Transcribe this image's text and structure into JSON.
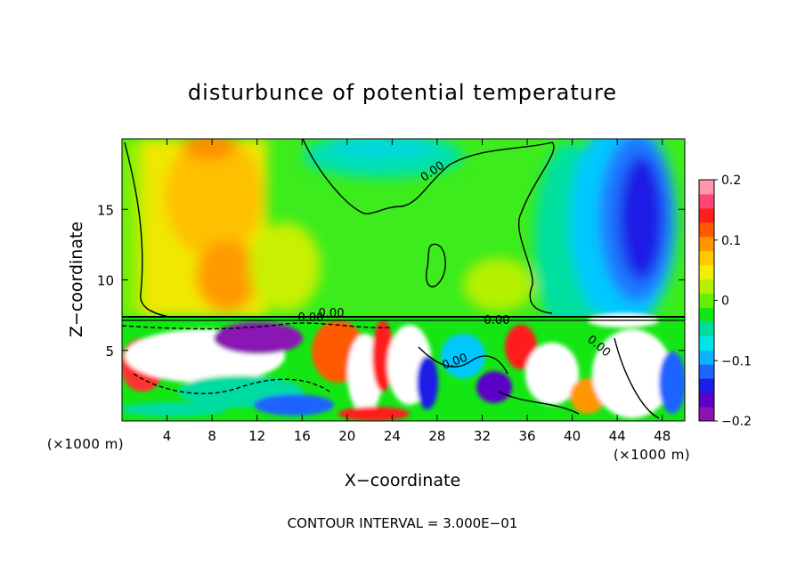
{
  "chart_data": {
    "type": "heatmap",
    "title": "disturbunce of potential temperature",
    "xlabel": "X−coordinate",
    "ylabel": "Z−coordinate",
    "x_unit_left": "(×1000 m)",
    "x_unit_right": "(×1000 m)",
    "footer": "CONTOUR INTERVAL = 3.000E−01",
    "xlim": [
      0,
      50
    ],
    "ylim": [
      0,
      20
    ],
    "x_ticks": [
      "4",
      "8",
      "12",
      "16",
      "20",
      "24",
      "28",
      "32",
      "36",
      "40",
      "44",
      "48"
    ],
    "y_ticks": [
      "5",
      "10",
      "15"
    ],
    "colorbar": {
      "range": [
        -0.2,
        0.2
      ],
      "tick_labels": [
        "0.2",
        "0.1",
        "0",
        "−0.1",
        "−0.2"
      ],
      "colors": [
        "#8a14b4",
        "#5a00c8",
        "#1e1ee6",
        "#1e64ff",
        "#0ab4ff",
        "#00e6e6",
        "#00dca0",
        "#14e614",
        "#64f000",
        "#b4f000",
        "#f0f000",
        "#ffc800",
        "#ff9600",
        "#ff5a00",
        "#ff1e1e",
        "#ff4678",
        "#ff96aa"
      ]
    },
    "contour_labels": [
      "0.00",
      "0.00",
      "0.00",
      "0.00",
      "0.00",
      "0.00"
    ],
    "grid": false
  }
}
